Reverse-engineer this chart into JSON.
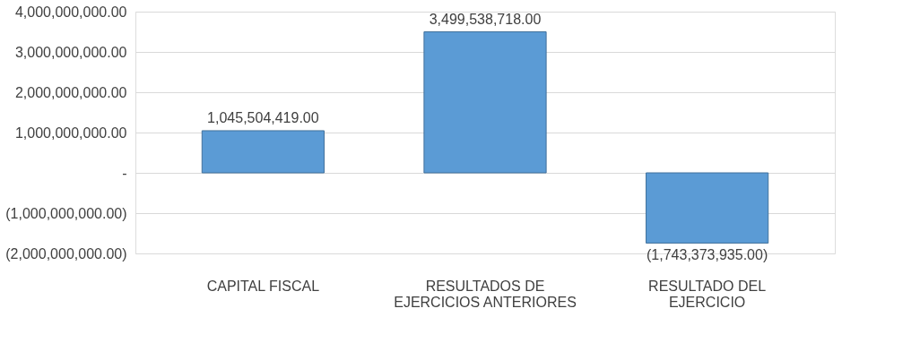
{
  "chart_data": {
    "type": "bar",
    "categories": [
      "CAPITAL FISCAL",
      "RESULTADOS DE EJERCICIOS ANTERIORES",
      "RESULTADO DEL EJERCICIO"
    ],
    "values": [
      1045504419,
      3499538718,
      -1743373935
    ],
    "value_labels": [
      "1,045,504,419.00",
      "3,499,538,718.00",
      "(1,743,373,935.00)"
    ],
    "color": "#5b9bd5",
    "ylim": [
      -2000000000,
      4000000000
    ],
    "yticks": [
      {
        "value": -2000000000,
        "label": "(2,000,000,000.00)"
      },
      {
        "value": -1000000000,
        "label": "(1,000,000,000.00)"
      },
      {
        "value": 0,
        "label": "-"
      },
      {
        "value": 1000000000,
        "label": "1,000,000,000.00"
      },
      {
        "value": 2000000000,
        "label": "2,000,000,000.00"
      },
      {
        "value": 3000000000,
        "label": "3,000,000,000.00"
      },
      {
        "value": 4000000000,
        "label": "4,000,000,000.00"
      }
    ],
    "grid": true
  }
}
